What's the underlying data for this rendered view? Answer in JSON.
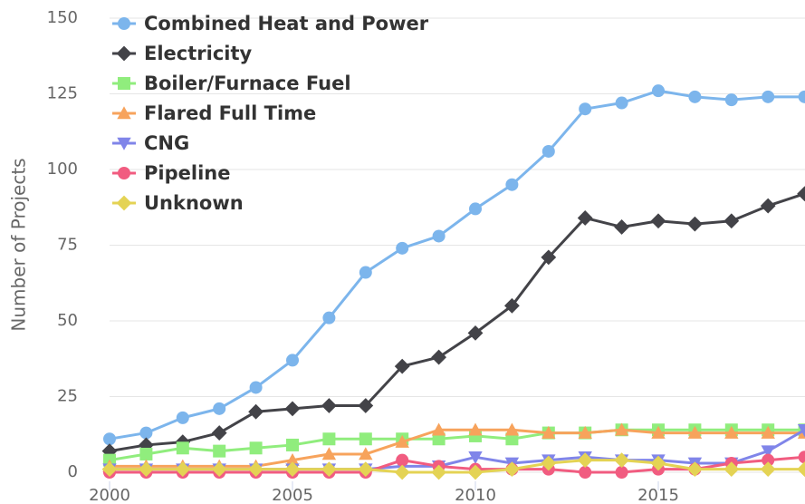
{
  "chart_data": {
    "type": "line",
    "y_label": "Number of Projects",
    "x": [
      2000,
      2001,
      2002,
      2003,
      2004,
      2005,
      2006,
      2007,
      2008,
      2009,
      2010,
      2011,
      2012,
      2013,
      2014,
      2015,
      2016,
      2017,
      2018,
      2019
    ],
    "xlim": [
      2000,
      2019
    ],
    "xticks": [
      2000,
      2005,
      2010,
      2015
    ],
    "ylim": [
      0,
      150
    ],
    "yticks": [
      0,
      25,
      50,
      75,
      100,
      125,
      150
    ],
    "grid": true,
    "legend": "top-left",
    "series": [
      {
        "name": "Combined Heat and Power",
        "color": "#7cb5ec",
        "marker": "circle",
        "values": [
          11,
          13,
          18,
          21,
          28,
          37,
          51,
          66,
          74,
          78,
          87,
          95,
          106,
          120,
          122,
          126,
          124,
          123,
          124,
          124
        ]
      },
      {
        "name": "Electricity",
        "color": "#434348",
        "marker": "diamond",
        "values": [
          7,
          9,
          10,
          13,
          20,
          21,
          22,
          22,
          35,
          38,
          46,
          55,
          71,
          84,
          81,
          83,
          82,
          83,
          88,
          92
        ]
      },
      {
        "name": "Boiler/Furnace Fuel",
        "color": "#90ed7d",
        "marker": "square",
        "values": [
          4,
          6,
          8,
          7,
          8,
          9,
          11,
          11,
          11,
          11,
          12,
          11,
          13,
          13,
          14,
          14,
          14,
          14,
          14,
          14
        ]
      },
      {
        "name": "Flared Full Time",
        "color": "#f7a35c",
        "marker": "triangle",
        "values": [
          2,
          2,
          2,
          2,
          2,
          4,
          6,
          6,
          10,
          14,
          14,
          14,
          13,
          13,
          14,
          13,
          13,
          13,
          13,
          13
        ]
      },
      {
        "name": "CNG",
        "color": "#8085e9",
        "marker": "triangle-down",
        "values": [
          1,
          1,
          1,
          1,
          1,
          1,
          1,
          1,
          2,
          2,
          5,
          3,
          4,
          5,
          4,
          4,
          3,
          3,
          7,
          14
        ]
      },
      {
        "name": "Pipeline",
        "color": "#f15c80",
        "marker": "circle",
        "values": [
          0,
          0,
          0,
          0,
          0,
          0,
          0,
          0,
          4,
          2,
          1,
          1,
          1,
          0,
          0,
          1,
          1,
          3,
          4,
          5
        ]
      },
      {
        "name": "Unknown",
        "color": "#e4d354",
        "marker": "diamond",
        "values": [
          1,
          1,
          1,
          1,
          1,
          1,
          1,
          1,
          0,
          0,
          0,
          1,
          3,
          4,
          4,
          3,
          1,
          1,
          1,
          1
        ]
      }
    ]
  }
}
